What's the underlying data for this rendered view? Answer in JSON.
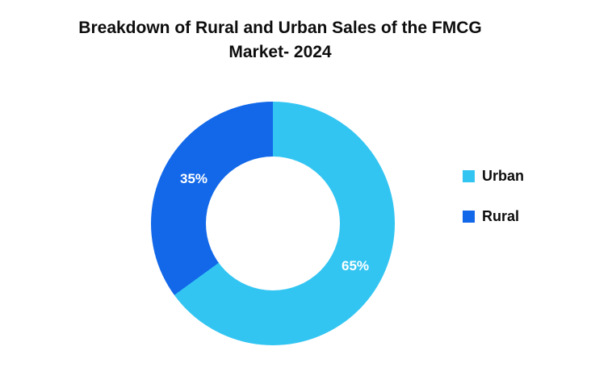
{
  "title": {
    "line1": "Breakdown of Rural and Urban Sales of the FMCG",
    "line2": "Market- 2024"
  },
  "chart_data": {
    "type": "pie",
    "subtype": "donut",
    "title": "Breakdown of Rural and Urban Sales of the FMCG Market- 2024",
    "categories": [
      "Urban",
      "Rural"
    ],
    "values": [
      65,
      35
    ],
    "data_labels": [
      "65%",
      "35%"
    ],
    "colors": [
      "#33C5F2",
      "#1268E9"
    ],
    "label_color": "#ffffff",
    "start_angle_deg": 0,
    "direction": "clockwise",
    "legend_position": "right",
    "hole_ratio": 0.55
  }
}
